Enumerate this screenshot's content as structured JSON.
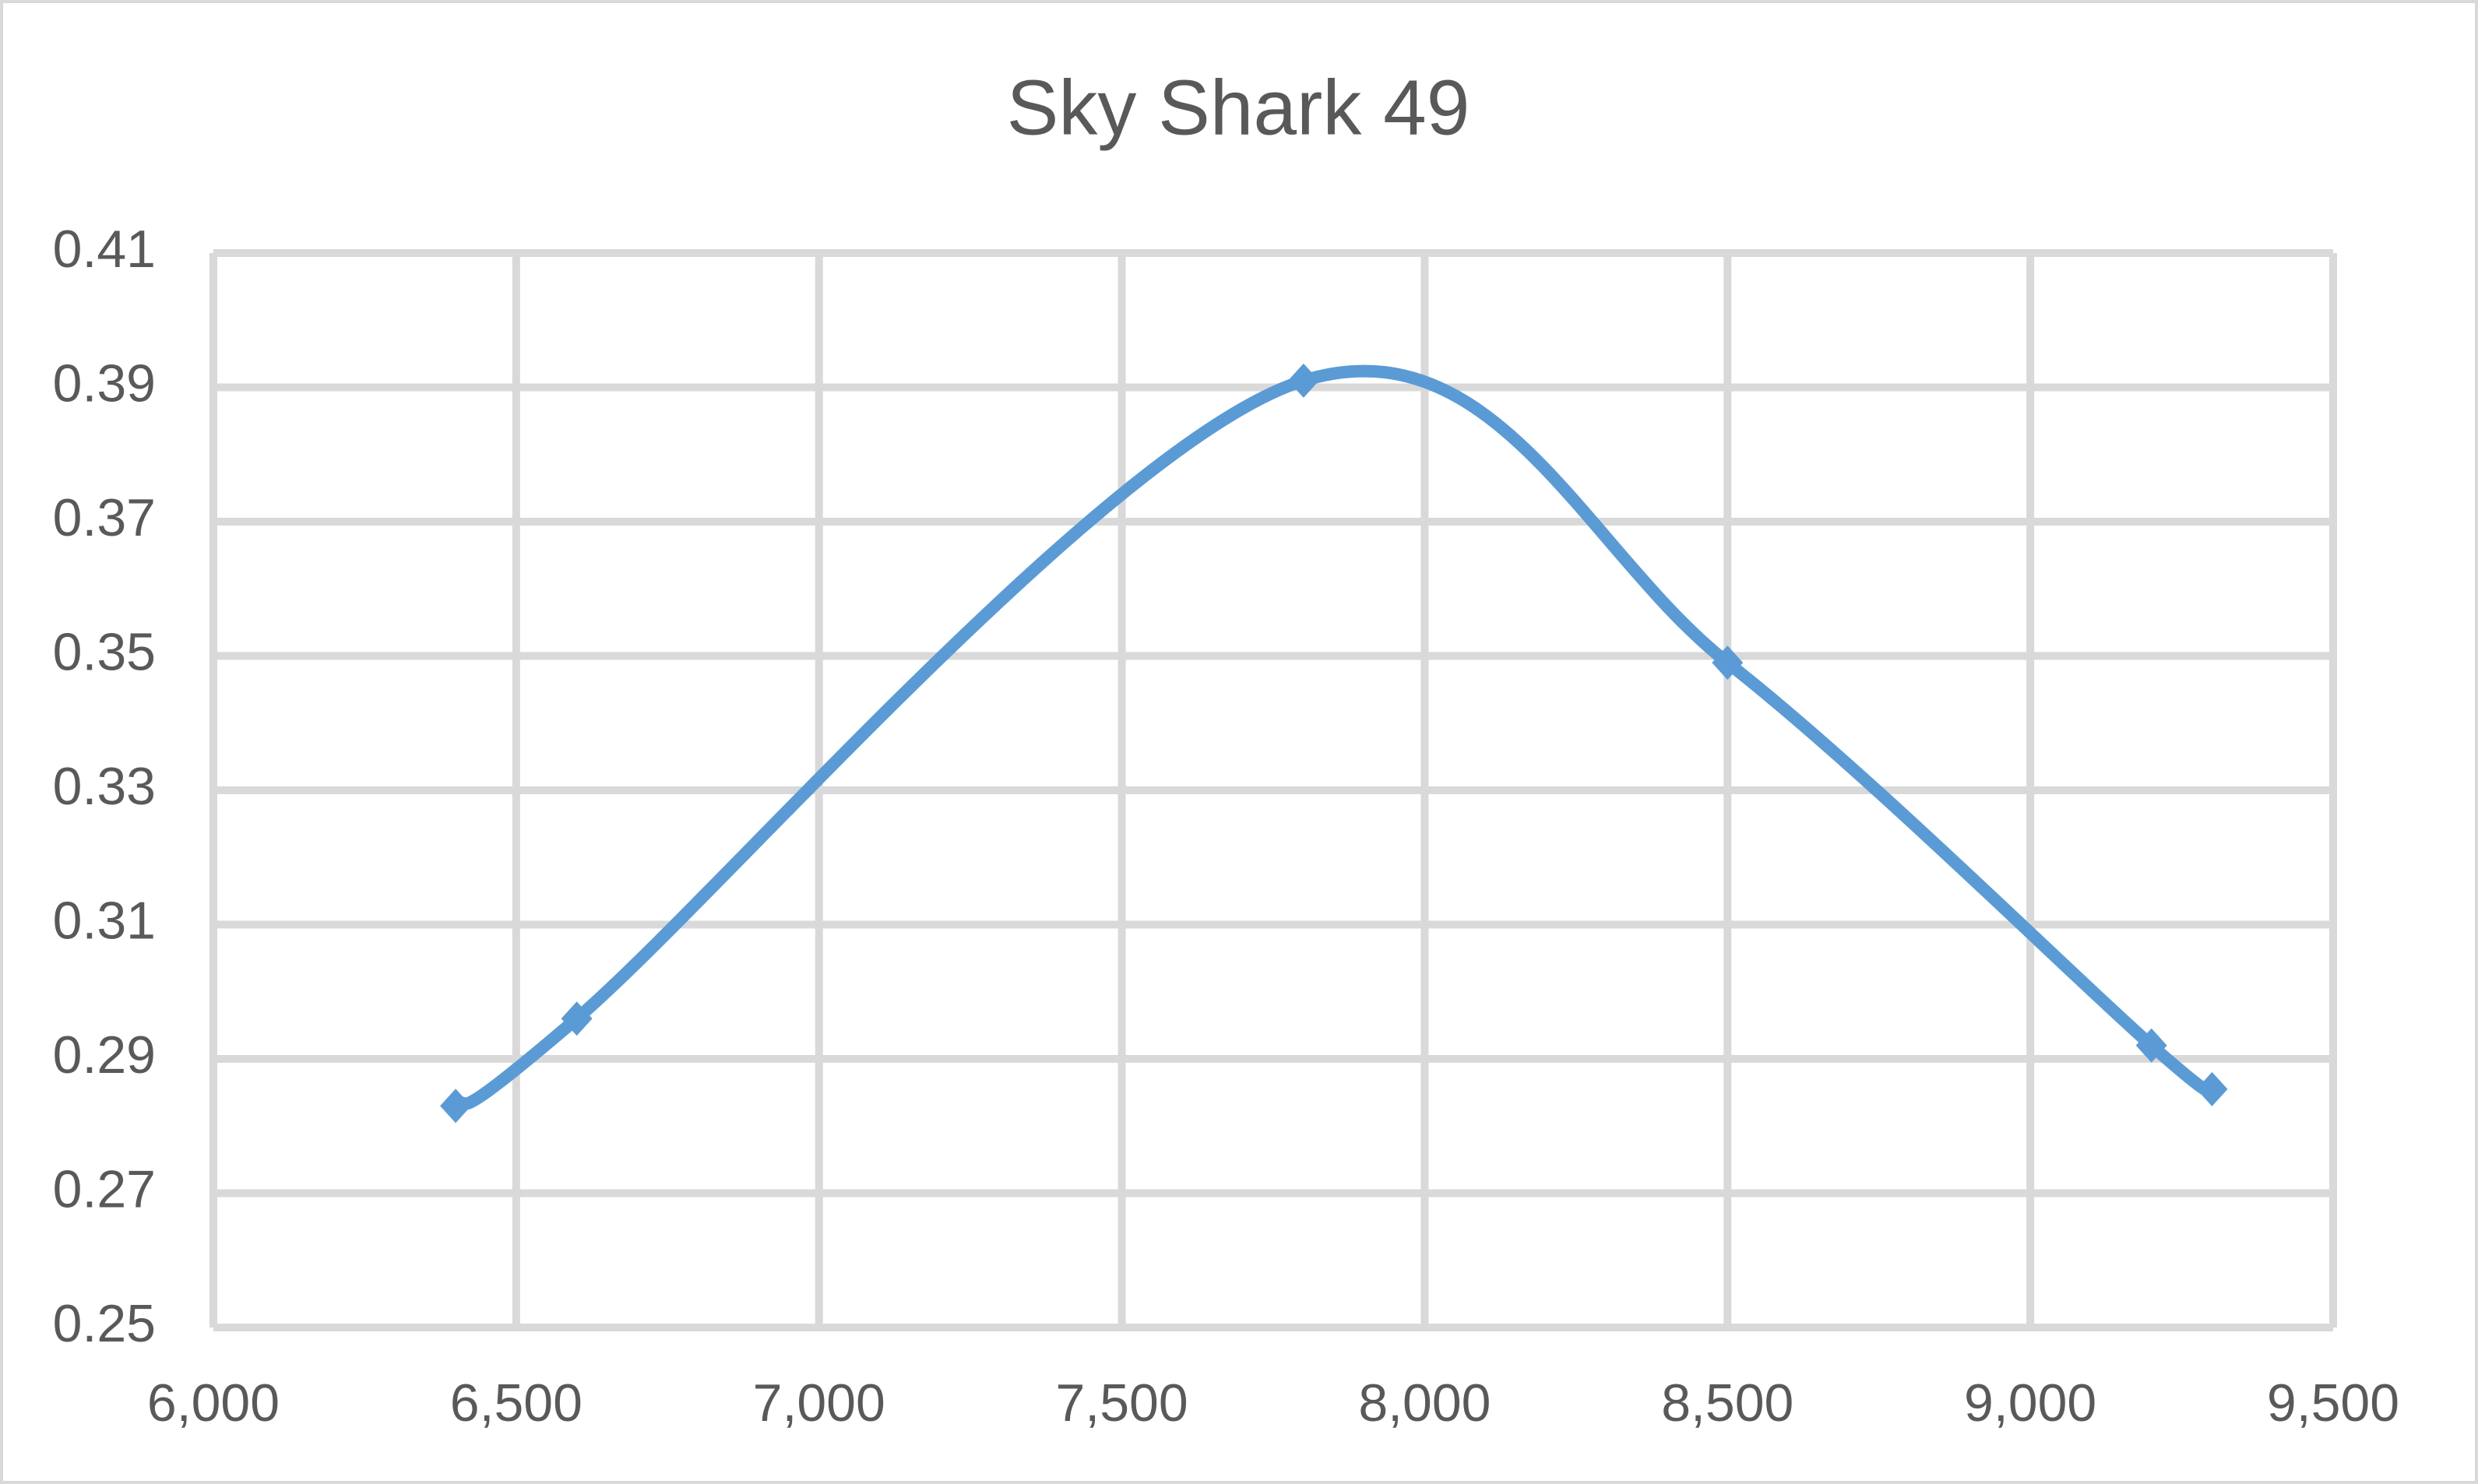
{
  "chart_data": {
    "type": "scatter",
    "title": "Sky Shark 49",
    "smooth": true,
    "grid": true,
    "series": [
      {
        "color": "#5b9bd5",
        "x": [
          6400,
          6600,
          7800,
          8500,
          9200,
          9300
        ],
        "values": [
          0.283,
          0.296,
          0.391,
          0.349,
          0.292,
          0.2855
        ]
      }
    ],
    "xlim": [
      6000,
      9500
    ],
    "xticks": [
      {
        "value": 6000,
        "label": "6,000"
      },
      {
        "value": 6500,
        "label": "6,500"
      },
      {
        "value": 7000,
        "label": "7,000"
      },
      {
        "value": 7500,
        "label": "7,500"
      },
      {
        "value": 8000,
        "label": "8,000"
      },
      {
        "value": 8500,
        "label": "8,500"
      },
      {
        "value": 9000,
        "label": "9,000"
      },
      {
        "value": 9500,
        "label": "9,500"
      }
    ],
    "ylim": [
      0.25,
      0.41
    ],
    "yticks": [
      0.25,
      0.27,
      0.29,
      0.31,
      0.33,
      0.35,
      0.37,
      0.39,
      0.41
    ]
  }
}
